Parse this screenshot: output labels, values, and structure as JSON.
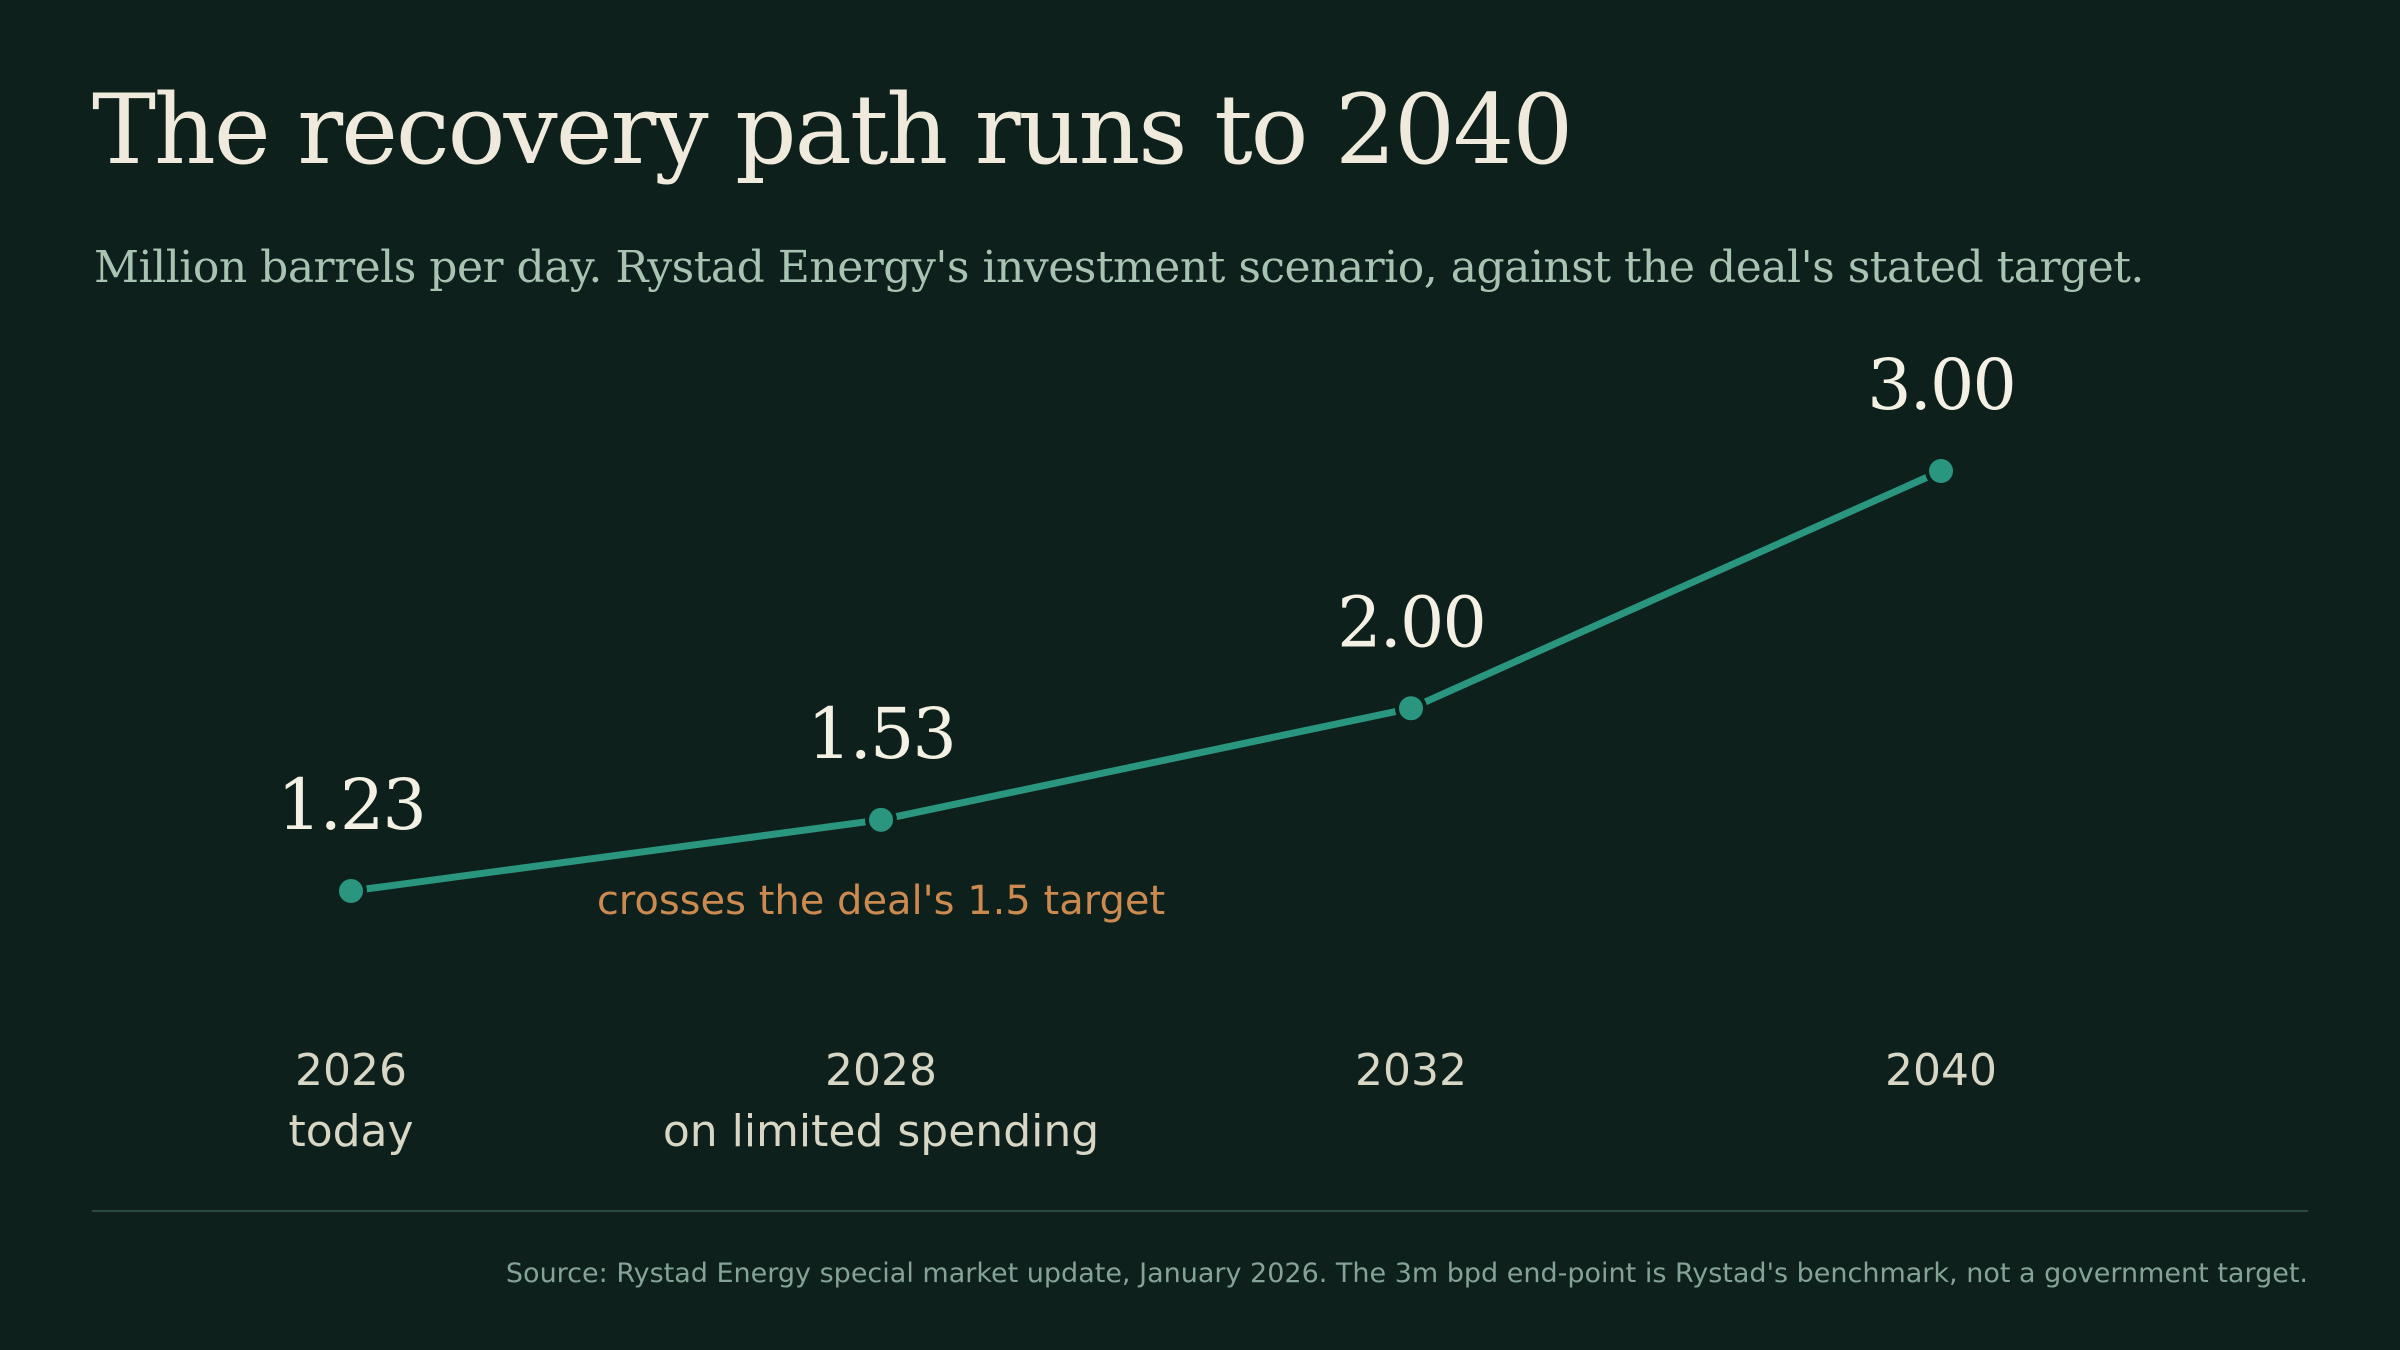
{
  "title": "The recovery path runs to 2040",
  "subtitle": "Million barrels per day. Rystad Energy's investment scenario, against the deal's stated target.",
  "source": "Source: Rystad Energy special market update, January 2026. The 3m bpd end-point is Rystad's benchmark, not a government target.",
  "colors": {
    "background": "#0d201b",
    "line": "#2a9680",
    "annotation": "#cc8a50"
  },
  "chart_data": {
    "type": "line",
    "title": "The recovery path runs to 2040",
    "subtitle": "Million barrels per day. Rystad Energy's investment scenario, against the deal's stated target.",
    "x": [
      "2026",
      "2028",
      "2032",
      "2040"
    ],
    "x_sublabels": [
      "today",
      "on limited spending",
      "",
      ""
    ],
    "series": [
      {
        "values": [
          1.23,
          1.53,
          2.0,
          3.0
        ],
        "labels": [
          "1.23",
          "1.53",
          "2.00",
          "3.00"
        ]
      }
    ],
    "annotations": [
      {
        "text": "crosses the deal's 1.5 target",
        "x": "2028"
      }
    ],
    "grid": false,
    "legend": "none"
  }
}
